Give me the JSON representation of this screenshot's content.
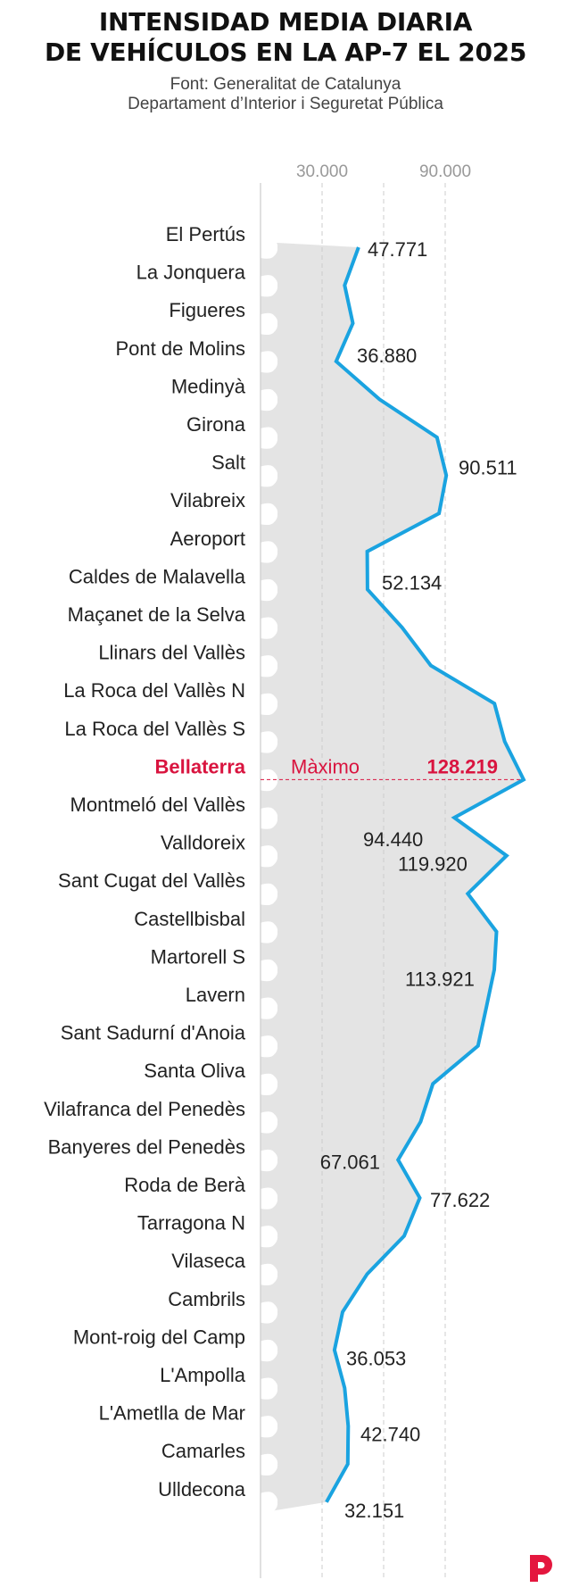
{
  "title": {
    "line1": "INTENSIDAD MEDIA DIARIA",
    "line2": "DE VEHÍCULOS EN LA AP-7 EL 2025"
  },
  "source": {
    "line1": "Font: Generalitat de Catalunya",
    "line2": "Departament d’Interior i Seguretat Pública"
  },
  "colors": {
    "line": "#1aa3e0",
    "area": "#e4e4e4",
    "highlight": "#d9143f",
    "text": "#222222",
    "axis": "#999999",
    "grid": "#cccccc",
    "logo": "#e4173e"
  },
  "logo": {
    "icon": "p-logo-icon"
  },
  "chart_data": {
    "type": "area",
    "orientation": "vertical",
    "categories": [
      "El Pertús",
      "La Jonquera",
      "Figueres",
      "Pont de Molins",
      "Medinyà",
      "Girona",
      "Salt",
      "Vilabreix",
      "Aeroport",
      "Caldes de Malavella",
      "Maçanet de la Selva",
      "Llinars del Vallès",
      "La Roca del Vallès N",
      "La Roca del Vallès S",
      "Bellaterra",
      "Montmeló del Vallès",
      "Valldoreix",
      "Sant Cugat del Vallès",
      "Castellbisbal",
      "Martorell S",
      "Lavern",
      "Sant Sadurní d'Anoia",
      "Santa Oliva",
      "Vilafranca del Penedès",
      "Banyeres del Penedès",
      "Roda de Berà",
      "Tarragona N",
      "Vilaseca",
      "Cambrils",
      "Mont-roig del Camp",
      "L'Ampolla",
      "L'Ametlla de Mar",
      "Camarles",
      "Ulldecona"
    ],
    "values": [
      47771,
      41000,
      45000,
      36880,
      58000,
      86000,
      90511,
      87000,
      52000,
      52134,
      69000,
      83000,
      114000,
      119000,
      128219,
      94440,
      119920,
      101000,
      115000,
      113921,
      110000,
      106000,
      84000,
      78000,
      67061,
      77622,
      70000,
      52000,
      40000,
      36053,
      41000,
      42740,
      42500,
      32151
    ],
    "x_ticks": [
      {
        "value": 30000,
        "label": "30.000"
      },
      {
        "value": 90000,
        "label": "90.000"
      }
    ],
    "gridlines": [
      30000,
      60000,
      90000
    ],
    "xlim": [
      0,
      130000
    ],
    "data_labels": [
      {
        "index": 0,
        "label": "47.771"
      },
      {
        "index": 3,
        "label": "36.880"
      },
      {
        "index": 6,
        "label": "90.511"
      },
      {
        "index": 9,
        "label": "52.134"
      },
      {
        "index": 15,
        "label": "94.440"
      },
      {
        "index": 16,
        "label": "119.920"
      },
      {
        "index": 19,
        "label": "113.921"
      },
      {
        "index": 24,
        "label": "67.061"
      },
      {
        "index": 25,
        "label": "77.622"
      },
      {
        "index": 29,
        "label": "36.053"
      },
      {
        "index": 31,
        "label": "42.740"
      },
      {
        "index": 33,
        "label": "32.151"
      }
    ],
    "highlight": {
      "index": 14,
      "caption": "Màximo",
      "label": "128.219"
    }
  }
}
